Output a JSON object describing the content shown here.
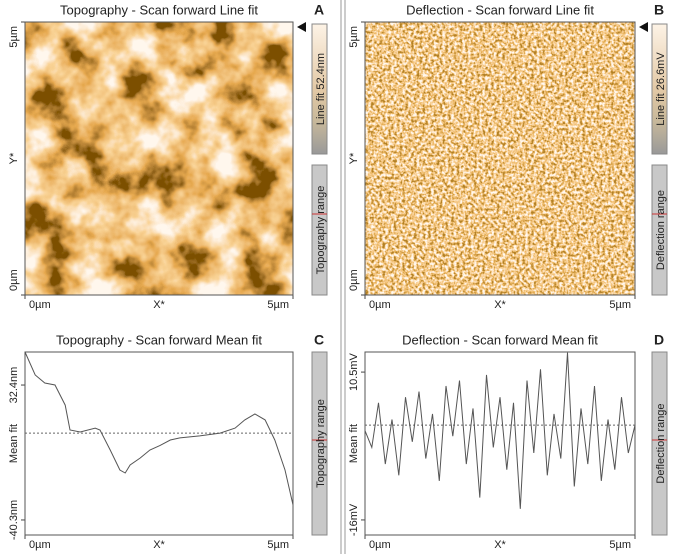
{
  "chart_data": [
    {
      "type": "image",
      "panel": "A",
      "title": "Topography - Scan forward   Line fit",
      "xlabel": "X*",
      "ylabel": "Y*",
      "xlim": [
        0,
        5
      ],
      "ylim": [
        0,
        5
      ],
      "xticks": [
        {
          "value": 0,
          "label": "0µm"
        },
        {
          "value": 5,
          "label": "5µm"
        }
      ],
      "yticks": [
        {
          "value": 0,
          "label": "0µm"
        },
        {
          "value": 5,
          "label": "5µm"
        }
      ],
      "colorbar_label": "Line fit 52.4nm",
      "range_label": "Topography range"
    },
    {
      "type": "image",
      "panel": "B",
      "title": "Deflection - Scan forward   Line fit",
      "xlabel": "X*",
      "ylabel": "Y*",
      "xlim": [
        0,
        5
      ],
      "ylim": [
        0,
        5
      ],
      "xticks": [
        {
          "value": 0,
          "label": "0µm"
        },
        {
          "value": 5,
          "label": "5µm"
        }
      ],
      "yticks": [
        {
          "value": 0,
          "label": "0µm"
        },
        {
          "value": 5,
          "label": "5µm"
        }
      ],
      "colorbar_label": "Line fit 26.6mV",
      "range_label": "Deflection range"
    },
    {
      "type": "line",
      "panel": "C",
      "title": "Topography - Scan forward   Mean fit",
      "xlabel": "X*",
      "ylabel": "Mean fit",
      "xlim": [
        0,
        5
      ],
      "ylim": [
        -48.4,
        50.2
      ],
      "xticks": [
        {
          "value": 0,
          "label": "0µm"
        },
        {
          "value": 5,
          "label": "5µm"
        }
      ],
      "yticks": [
        {
          "value": 32.4,
          "label": "32.4nm"
        },
        {
          "value": -40.3,
          "label": "-40.3nm"
        }
      ],
      "reference_line": 6.5,
      "color": "#555555",
      "range_label": "Topography range",
      "x": [
        0,
        0.19,
        0.37,
        0.56,
        0.75,
        0.84,
        1.03,
        1.31,
        1.4,
        1.59,
        1.77,
        1.87,
        1.96,
        2.15,
        2.33,
        2.52,
        2.71,
        2.89,
        3.26,
        3.64,
        3.92,
        4.1,
        4.29,
        4.48,
        4.66,
        4.85,
        5
      ],
      "values": [
        50.2,
        37.8,
        33.5,
        32.4,
        21.6,
        8.2,
        7.1,
        9.2,
        8.2,
        -2.6,
        -13.4,
        -15.0,
        -10.7,
        -6.9,
        -2.6,
        -0.1,
        2.8,
        3.9,
        5.0,
        6.5,
        9.2,
        13.6,
        16.8,
        13.6,
        2.8,
        -13.4,
        -32.2
      ]
    },
    {
      "type": "line",
      "panel": "D",
      "title": "Deflection - Scan forward   Mean fit",
      "xlabel": "X*",
      "ylabel": "Mean fit",
      "xlim": [
        0,
        5
      ],
      "ylim": [
        -18.7,
        14.1
      ],
      "xticks": [
        {
          "value": 0,
          "label": "0µm"
        },
        {
          "value": 5,
          "label": "5µm"
        }
      ],
      "yticks": [
        {
          "value": 10.5,
          "label": "10.5mV"
        },
        {
          "value": -16,
          "label": "-16mV"
        }
      ],
      "reference_line": 1.0,
      "color": "#555555",
      "range_label": "Deflection range",
      "x": [
        0,
        0.125,
        0.25,
        0.375,
        0.5,
        0.625,
        0.75,
        0.875,
        1,
        1.125,
        1.25,
        1.375,
        1.5,
        1.625,
        1.75,
        1.875,
        2,
        2.125,
        2.25,
        2.375,
        2.5,
        2.625,
        2.75,
        2.875,
        3,
        3.125,
        3.25,
        3.375,
        3.5,
        3.625,
        3.75,
        3.875,
        4,
        4.125,
        4.25,
        4.375,
        4.5,
        4.625,
        4.75,
        4.875,
        5
      ],
      "values": [
        0,
        -3,
        5,
        -6,
        2,
        -8,
        6,
        -2,
        7,
        -5,
        3,
        -9,
        8,
        -1,
        9,
        -6,
        4,
        -12,
        10,
        -3,
        6,
        -7,
        5,
        -14,
        9,
        -4,
        11,
        -8,
        3,
        -5,
        14,
        -10,
        4,
        -6,
        8,
        -9,
        2,
        -7,
        6,
        -4,
        1
      ]
    }
  ]
}
